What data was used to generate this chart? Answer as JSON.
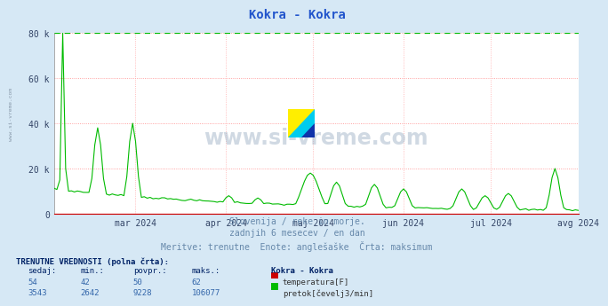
{
  "title": "Kokra - Kokra",
  "title_color": "#2255cc",
  "bg_color": "#d6e8f5",
  "plot_bg_color": "#ffffff",
  "grid_color_h": "#ff9999",
  "grid_color_v": "#ffcccc",
  "xmin": 0,
  "xmax": 180,
  "ymin": 0,
  "ymax": 80000,
  "yticks": [
    0,
    20000,
    40000,
    60000,
    80000
  ],
  "ytick_labels": [
    "0",
    "20 k",
    "40 k",
    "60 k",
    "80 k"
  ],
  "xtick_labels": [
    "mar 2024",
    "apr 2024",
    "maj 2024",
    "jun 2024",
    "jul 2024",
    "avg 2024"
  ],
  "xtick_positions": [
    28,
    59,
    89,
    120,
    150,
    180
  ],
  "subtitle_line1": "Slovenija / reke in morje.",
  "subtitle_line2": "zadnjih 6 mesecev / en dan",
  "subtitle_line3": "Meritve: trenutne  Enote: anglešaške  Črta: maksimum",
  "subtitle_color": "#6688aa",
  "watermark": "www.si-vreme.com",
  "sidebar_text": "www.si-vreme.com",
  "sidebar_color": "#8899aa",
  "legend_title": "TRENUTNE VREDNOSTI (polna črta):",
  "legend_header": [
    "sedaj:",
    "min.:",
    "povpr.:",
    "maks.:",
    "Kokra - Kokra"
  ],
  "legend_row1": [
    "54",
    "42",
    "50",
    "62",
    "temperatura[F]"
  ],
  "legend_row2": [
    "3543",
    "2642",
    "9228",
    "106077",
    "pretok[čevelj3/min]"
  ],
  "temp_color": "#cc0000",
  "flow_color": "#00bb00",
  "dashed_line_color": "#00bb00",
  "dashed_line_y": 80000,
  "logo_yellow": "#ffee00",
  "logo_cyan": "#00ccee",
  "logo_blue": "#1133aa"
}
